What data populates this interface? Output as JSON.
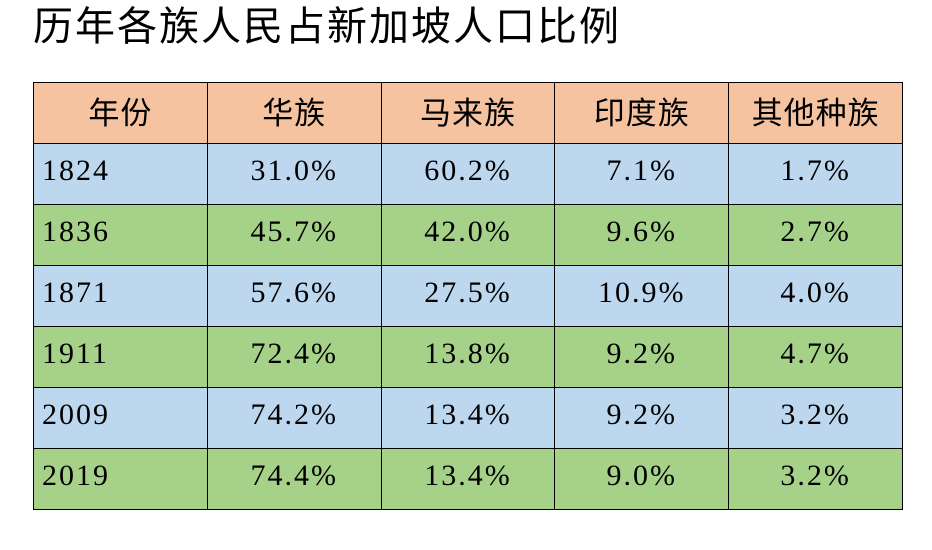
{
  "title": "历年各族人民占新加坡人口比例",
  "chart_data": {
    "type": "table",
    "title": "历年各族人民占新加坡人口比例",
    "columns": [
      "年份",
      "华族",
      "马来族",
      "印度族",
      "其他种族"
    ],
    "rows": [
      [
        "1824",
        "31.0%",
        "60.2%",
        "7.1%",
        "1.7%"
      ],
      [
        "1836",
        "45.7%",
        "42.0%",
        "9.6%",
        "2.7%"
      ],
      [
        "1871",
        "57.6%",
        "27.5%",
        "10.9%",
        "4.0%"
      ],
      [
        "1911",
        "72.4%",
        "13.8%",
        "9.2%",
        "4.7%"
      ],
      [
        "2009",
        "74.2%",
        "13.4%",
        "9.2%",
        "3.2%"
      ],
      [
        "2019",
        "74.4%",
        "13.4%",
        "9.0%",
        "3.2%"
      ]
    ]
  },
  "colors": {
    "header_bg": "#F5C3A0",
    "row_blue": "#BDD7EE",
    "row_green": "#A6D189",
    "border": "#000000",
    "text": "#000000",
    "page_bg": "#FFFFFF"
  }
}
